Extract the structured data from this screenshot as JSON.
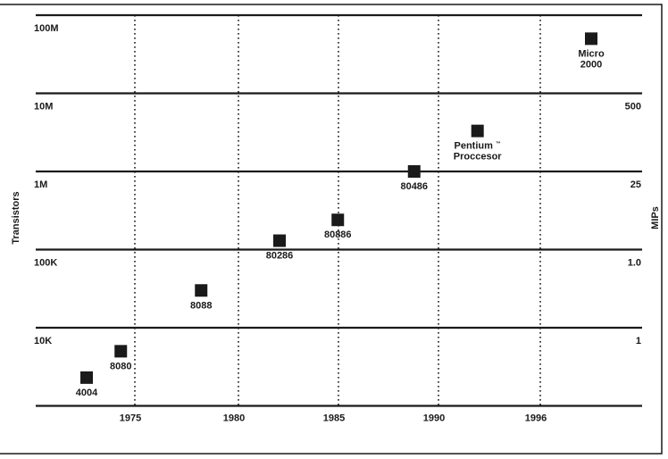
{
  "chart_data": {
    "type": "scatter",
    "title": "",
    "ylabel": "Transistors",
    "ylabel_right": "MIPs",
    "x_ticks": [
      "1975",
      "1980",
      "1985",
      "1990",
      "1996"
    ],
    "y_left_ticks": [
      "100M",
      "10M",
      "1M",
      "100K",
      "10K"
    ],
    "y_right_ticks": [
      "500",
      "25",
      "1.0",
      "1"
    ],
    "grid": "horizontal solid, vertical dotted",
    "points": [
      {
        "label": "4004",
        "x": 1972.6,
        "y": 2300
      },
      {
        "label": "8080",
        "x": 1974.3,
        "y": 5000
      },
      {
        "label": "8088",
        "x": 1978.3,
        "y": 30000
      },
      {
        "label": "80286",
        "x": 1982.2,
        "y": 130000
      },
      {
        "label": "80886",
        "x": 1985.1,
        "y": 240000
      },
      {
        "label": "80486",
        "x": 1988.9,
        "y": 1000000
      },
      {
        "label": "Pentium",
        "label_tm": "™",
        "label2": "Proccesor",
        "x": 1992.3,
        "y": 3300000
      },
      {
        "label": "Micro",
        "label2": "2000",
        "x": 1999.0,
        "y": 50000000
      }
    ]
  }
}
